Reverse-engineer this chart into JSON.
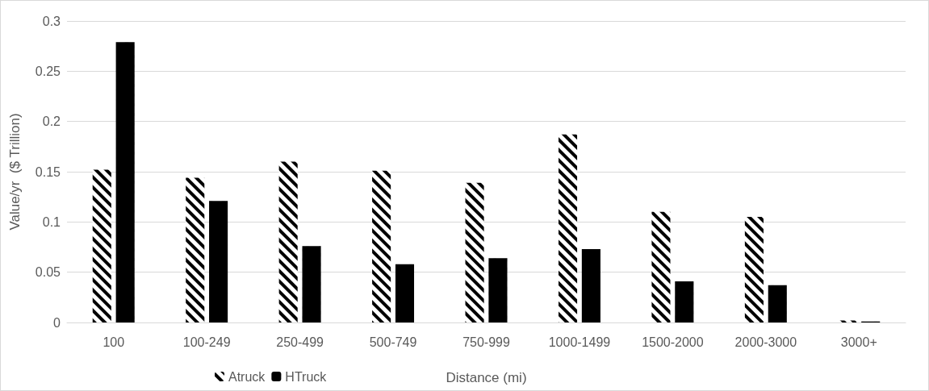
{
  "chart_data": {
    "type": "bar",
    "xlabel": "Distance (mi)",
    "ylabel": "Value/yr  ($ Trillion)",
    "categories": [
      "100",
      "100-249",
      "250-499",
      "500-749",
      "750-999",
      "1000-1499",
      "1500-2000",
      "2000-3000",
      "3000+"
    ],
    "series": [
      {
        "name": "Atruck",
        "color": "#000000",
        "values": [
          0.152,
          0.144,
          0.16,
          0.151,
          0.139,
          0.187,
          0.11,
          0.105,
          0.002
        ]
      },
      {
        "name": "HTruck",
        "color": "#000000",
        "values": [
          0.279,
          0.121,
          0.076,
          0.058,
          0.064,
          0.073,
          0.041,
          0.037,
          0.001
        ]
      }
    ],
    "ylim": [
      0,
      0.3
    ],
    "yticks": [
      0,
      0.05,
      0.1,
      0.15,
      0.2,
      0.25,
      0.3
    ],
    "grid": "y",
    "legend": "bottom"
  }
}
